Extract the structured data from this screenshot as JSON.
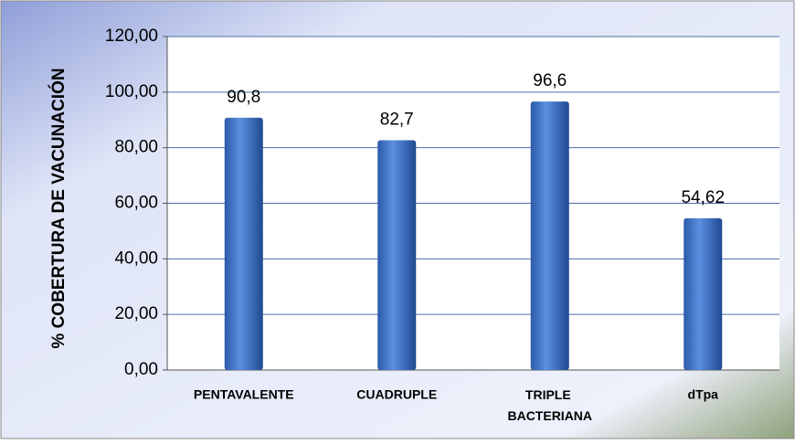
{
  "chart_data": {
    "type": "bar",
    "y_axis_label": "% COBERTURA DE VACUNACIÓN",
    "categories": [
      "PENTAVALENTE",
      "CUADRUPLE",
      "TRIPLE BACTERIANA",
      "dTpa"
    ],
    "values": [
      90.8,
      82.7,
      96.6,
      54.62
    ],
    "value_labels": [
      "90,8",
      "82,7",
      "96,6",
      "54,62"
    ],
    "color": "#3a6fc0",
    "ylim": [
      0,
      120
    ],
    "yticks": [
      {
        "value": 0,
        "label": "0,00"
      },
      {
        "value": 20,
        "label": "20,00"
      },
      {
        "value": 40,
        "label": "40,00"
      },
      {
        "value": 60,
        "label": "60,00"
      },
      {
        "value": 80,
        "label": "80,00"
      },
      {
        "value": 100,
        "label": "100,00"
      },
      {
        "value": 120,
        "label": "120,00"
      }
    ],
    "grid": true
  }
}
